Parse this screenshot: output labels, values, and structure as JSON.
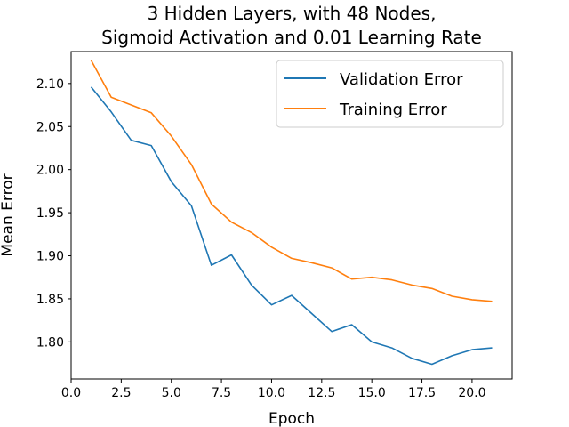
{
  "chart_data": {
    "type": "line",
    "title_line1": "3 Hidden Layers, with 48 Nodes,",
    "title_line2": "Sigmoid Activation and 0.01 Learning Rate",
    "xlabel": "Epoch",
    "ylabel": "Mean Error",
    "xlim": [
      0.0,
      22.0
    ],
    "ylim": [
      1.757,
      2.137
    ],
    "xticks": [
      0.0,
      2.5,
      5.0,
      7.5,
      10.0,
      12.5,
      15.0,
      17.5,
      20.0
    ],
    "xtick_labels": [
      "0.0",
      "2.5",
      "5.0",
      "7.5",
      "10.0",
      "12.5",
      "15.0",
      "17.5",
      "20.0"
    ],
    "yticks": [
      1.8,
      1.85,
      1.9,
      1.95,
      2.0,
      2.05,
      2.1
    ],
    "ytick_labels": [
      "1.80",
      "1.85",
      "1.90",
      "1.95",
      "2.00",
      "2.05",
      "2.10"
    ],
    "grid": false,
    "legend_position": "top-right",
    "x": [
      1,
      2,
      3,
      4,
      5,
      6,
      7,
      8,
      9,
      10,
      11,
      12,
      13,
      14,
      15,
      16,
      17,
      18,
      19,
      20,
      21
    ],
    "series": [
      {
        "name": "Validation Error",
        "color": "#1f77b4",
        "values": [
          2.096,
          2.067,
          2.034,
          2.028,
          1.986,
          1.958,
          1.889,
          1.901,
          1.866,
          1.843,
          1.854,
          1.833,
          1.812,
          1.82,
          1.8,
          1.793,
          1.781,
          1.774,
          1.784,
          1.791,
          1.793
        ]
      },
      {
        "name": "Training Error",
        "color": "#ff7f0e",
        "values": [
          2.127,
          2.084,
          2.075,
          2.066,
          2.039,
          2.006,
          1.96,
          1.939,
          1.927,
          1.91,
          1.897,
          1.892,
          1.886,
          1.873,
          1.875,
          1.872,
          1.866,
          1.862,
          1.853,
          1.849,
          1.847
        ]
      }
    ]
  }
}
